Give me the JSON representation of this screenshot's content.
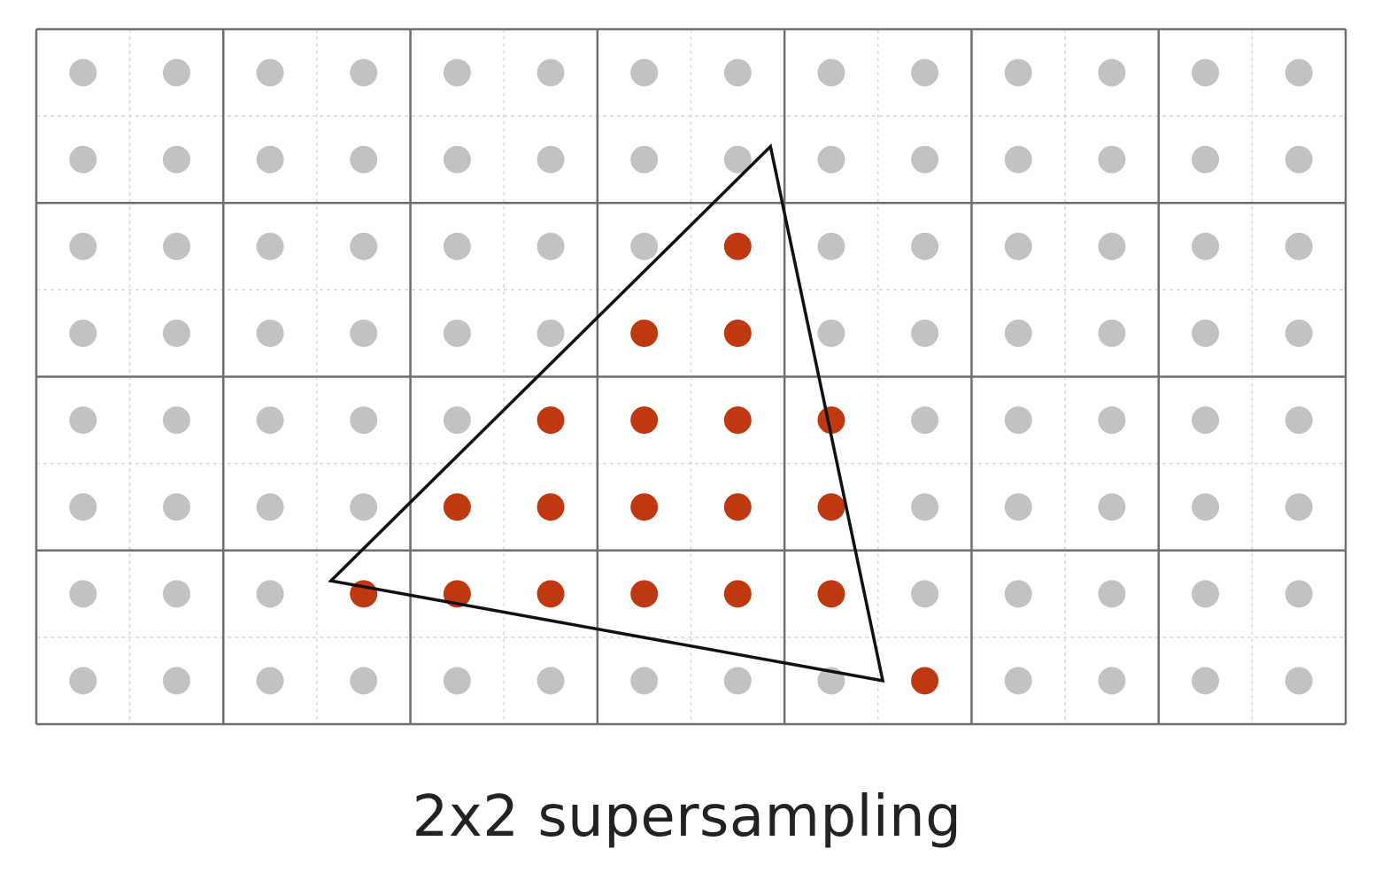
{
  "caption": "2x2 supersampling",
  "grid": {
    "pixel_columns": 7,
    "pixel_rows": 4,
    "samples_per_pixel": [
      2,
      2
    ]
  },
  "colors": {
    "background": "#ffffff",
    "pixel_line": "#6e6e6e",
    "subpixel_line": "#d8d8d8",
    "sample_outside": "#c2c2c2",
    "sample_inside": "#c0380f",
    "triangle_edge": "#111111"
  },
  "triangle": [
    [
      7.85,
      1.35
    ],
    [
      3.15,
      6.35
    ],
    [
      9.05,
      7.5
    ]
  ],
  "covered_samples": [
    [
      7,
      2
    ],
    [
      6,
      3
    ],
    [
      7,
      3
    ],
    [
      5,
      4
    ],
    [
      6,
      4
    ],
    [
      7,
      4
    ],
    [
      8,
      4
    ],
    [
      4,
      5
    ],
    [
      5,
      5
    ],
    [
      6,
      5
    ],
    [
      7,
      5
    ],
    [
      8,
      5
    ],
    [
      3,
      6
    ],
    [
      4,
      6
    ],
    [
      5,
      6
    ],
    [
      6,
      6
    ],
    [
      7,
      6
    ],
    [
      8,
      6
    ],
    [
      9,
      7
    ]
  ]
}
